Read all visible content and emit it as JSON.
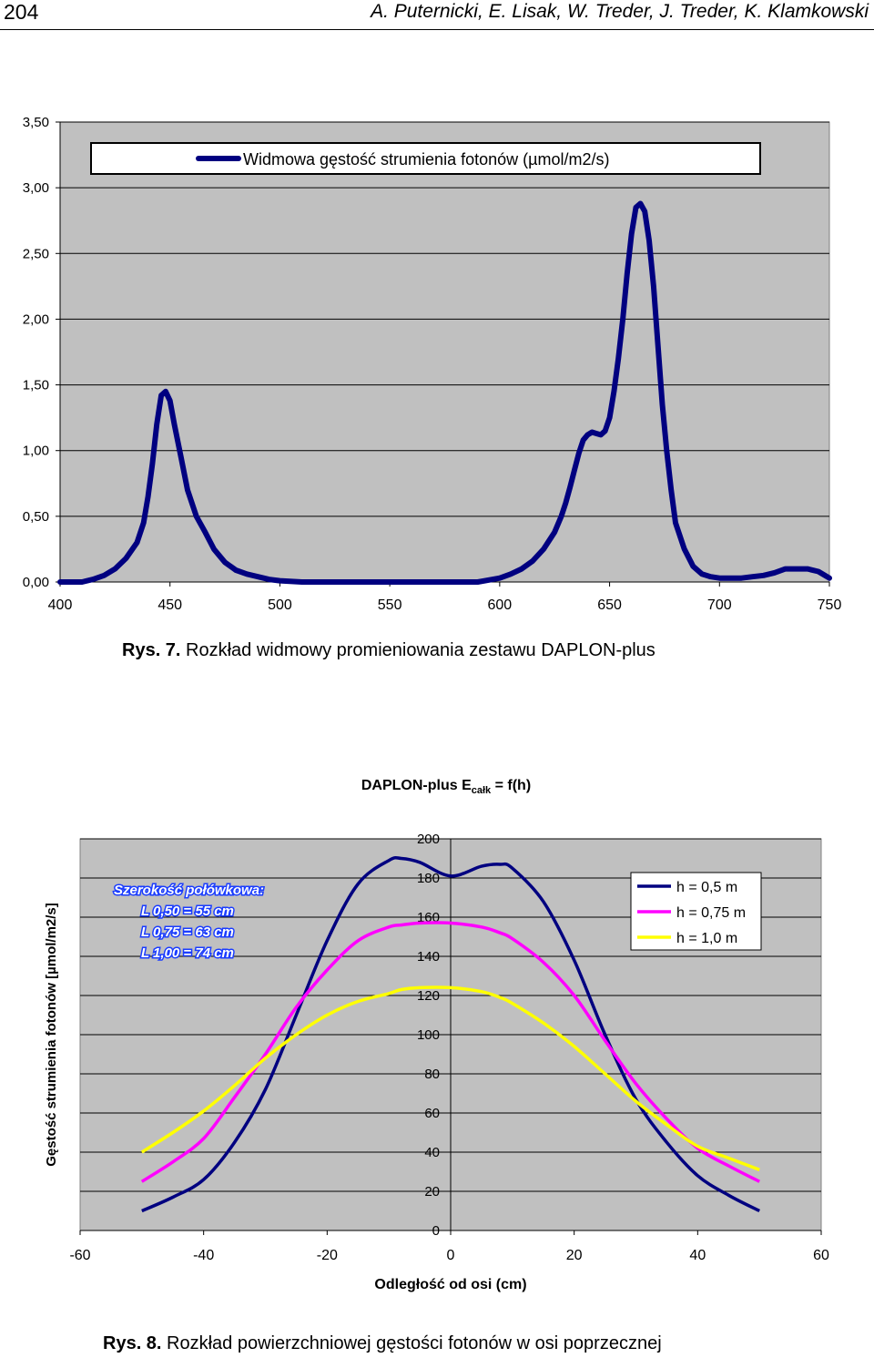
{
  "header": {
    "page_number": "204",
    "authors": "A. Puternicki, E. Lisak, W. Treder, J. Treder, K. Klamkowski"
  },
  "figure1": {
    "caption_label": "Rys. 7.",
    "caption_text": " Rozkład widmowy promieniowania zestawu DAPLON-plus"
  },
  "figure2": {
    "caption_label": "Rys. 8.",
    "caption_text": " Rozkład powierzchniowej gęstości fotonów w osi poprzecznej",
    "annotation": {
      "title": "Szerokość połówkowa:",
      "lines": [
        "L 0,50 = 55 cm",
        "L 0,75 = 63 cm",
        "L 1,00 = 74 cm"
      ]
    }
  },
  "chart_data": [
    {
      "type": "line",
      "title": "",
      "xlabel": "",
      "ylabel": "",
      "xlim": [
        400,
        750
      ],
      "ylim": [
        0,
        3.5
      ],
      "grid": true,
      "legend": "top",
      "x_ticks": [
        "400",
        "450",
        "500",
        "550",
        "600",
        "650",
        "700",
        "750"
      ],
      "y_ticks": [
        "0,00",
        "0,50",
        "1,00",
        "1,50",
        "2,00",
        "2,50",
        "3,00",
        "3,50"
      ],
      "colors": {
        "plot_bg": "#c0c0c0",
        "series": "#000080"
      },
      "series": [
        {
          "name": "Widmowa gęstość strumienia fotonów (µmol/m2/s)",
          "x": [
            400,
            410,
            415,
            420,
            425,
            430,
            435,
            438,
            440,
            442,
            444,
            446,
            448,
            450,
            452,
            455,
            458,
            462,
            466,
            470,
            475,
            480,
            485,
            490,
            495,
            500,
            510,
            520,
            540,
            560,
            580,
            590,
            600,
            605,
            610,
            615,
            620,
            625,
            628,
            630,
            632,
            634,
            636,
            638,
            640,
            642,
            644,
            646,
            648,
            650,
            652,
            654,
            656,
            658,
            660,
            662,
            664,
            666,
            668,
            670,
            672,
            674,
            676,
            678,
            680,
            684,
            688,
            692,
            696,
            700,
            705,
            710,
            715,
            720,
            725,
            730,
            735,
            740,
            745,
            750
          ],
          "y": [
            0,
            0,
            0.02,
            0.05,
            0.1,
            0.18,
            0.3,
            0.45,
            0.65,
            0.9,
            1.2,
            1.42,
            1.45,
            1.38,
            1.2,
            0.95,
            0.7,
            0.5,
            0.38,
            0.25,
            0.15,
            0.09,
            0.06,
            0.04,
            0.02,
            0.01,
            0,
            0,
            0,
            0,
            0,
            0,
            0.03,
            0.06,
            0.1,
            0.16,
            0.25,
            0.38,
            0.5,
            0.6,
            0.72,
            0.85,
            0.98,
            1.08,
            1.12,
            1.14,
            1.13,
            1.12,
            1.15,
            1.25,
            1.45,
            1.7,
            2.0,
            2.35,
            2.65,
            2.85,
            2.88,
            2.82,
            2.6,
            2.25,
            1.8,
            1.35,
            1.0,
            0.7,
            0.45,
            0.25,
            0.12,
            0.06,
            0.04,
            0.03,
            0.03,
            0.03,
            0.04,
            0.05,
            0.07,
            0.1,
            0.1,
            0.1,
            0.08,
            0.03
          ]
        }
      ]
    },
    {
      "type": "line",
      "title": "DAPLON-plus  E",
      "title_subscript": "całk",
      "title_suffix": " = f(h)",
      "xlabel": "Odległość od osi (cm)",
      "ylabel": "Gęstość strumienia fotonów [µmol/m2/s]",
      "xlim": [
        -60,
        60
      ],
      "ylim": [
        0,
        200
      ],
      "grid": true,
      "legend": "top-right",
      "x_ticks": [
        "-60",
        "-40",
        "-20",
        "0",
        "20",
        "40",
        "60"
      ],
      "y_ticks": [
        "0",
        "20",
        "40",
        "60",
        "80",
        "100",
        "120",
        "140",
        "160",
        "180",
        "200"
      ],
      "colors": {
        "plot_bg": "#c0c0c0"
      },
      "x": [
        -50,
        -45,
        -40,
        -35,
        -30,
        -25,
        -20,
        -15,
        -10,
        -8,
        -5,
        0,
        5,
        8,
        10,
        15,
        20,
        25,
        30,
        35,
        40,
        45,
        50
      ],
      "series": [
        {
          "name": "h = 0,5 m",
          "color": "#000080",
          "values": [
            10,
            17,
            26,
            45,
            72,
            110,
            148,
            177,
            189,
            190,
            188,
            181,
            186,
            187,
            185,
            168,
            138,
            100,
            67,
            45,
            28,
            18,
            10
          ]
        },
        {
          "name": "h = 0,75 m",
          "color": "#ff00ff",
          "values": [
            25,
            35,
            47,
            68,
            90,
            114,
            133,
            148,
            155,
            156,
            157,
            157,
            155,
            152,
            149,
            137,
            120,
            97,
            75,
            57,
            42,
            33,
            25
          ]
        },
        {
          "name": "h = 1,0 m",
          "color": "#ffff00",
          "values": [
            40,
            50,
            61,
            74,
            88,
            100,
            110,
            117,
            121,
            123,
            124,
            124,
            122,
            119,
            116,
            106,
            94,
            80,
            66,
            54,
            43,
            37,
            31
          ]
        }
      ]
    }
  ]
}
